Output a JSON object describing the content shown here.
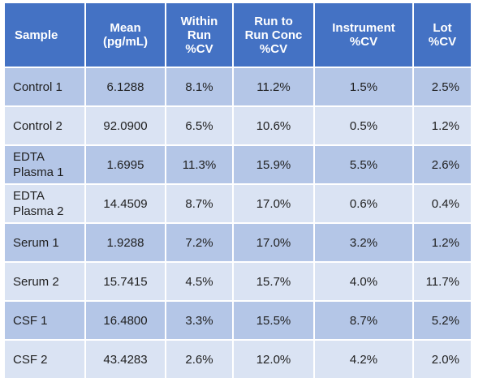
{
  "table": {
    "headers": [
      [
        "Sample"
      ],
      [
        "Mean",
        "(pg/mL)"
      ],
      [
        "Within",
        "Run",
        "%CV"
      ],
      [
        "Run to",
        "Run Conc",
        "%CV"
      ],
      [
        "Instrument",
        "%CV"
      ],
      [
        "Lot",
        "%CV"
      ]
    ],
    "rows": [
      {
        "sample": [
          "Control 1"
        ],
        "mean": "6.1288",
        "within_run": "8.1%",
        "run_to_run": "11.2%",
        "instrument": "1.5%",
        "lot": "2.5%"
      },
      {
        "sample": [
          "Control 2"
        ],
        "mean": "92.0900",
        "within_run": "6.5%",
        "run_to_run": "10.6%",
        "instrument": "0.5%",
        "lot": "1.2%"
      },
      {
        "sample": [
          "EDTA",
          "Plasma 1"
        ],
        "mean": "1.6995",
        "within_run": "11.3%",
        "run_to_run": "15.9%",
        "instrument": "5.5%",
        "lot": "2.6%"
      },
      {
        "sample": [
          "EDTA",
          "Plasma 2"
        ],
        "mean": "14.4509",
        "within_run": "8.7%",
        "run_to_run": "17.0%",
        "instrument": "0.6%",
        "lot": "0.4%"
      },
      {
        "sample": [
          "Serum 1"
        ],
        "mean": "1.9288",
        "within_run": "7.2%",
        "run_to_run": "17.0%",
        "instrument": "3.2%",
        "lot": "1.2%"
      },
      {
        "sample": [
          "Serum 2"
        ],
        "mean": "15.7415",
        "within_run": "4.5%",
        "run_to_run": "15.7%",
        "instrument": "4.0%",
        "lot": "11.7%"
      },
      {
        "sample": [
          "CSF 1"
        ],
        "mean": "16.4800",
        "within_run": "3.3%",
        "run_to_run": "15.5%",
        "instrument": "8.7%",
        "lot": "5.2%"
      },
      {
        "sample": [
          "CSF 2"
        ],
        "mean": "43.4283",
        "within_run": "2.6%",
        "run_to_run": "12.0%",
        "instrument": "4.2%",
        "lot": "2.0%"
      }
    ]
  },
  "colors": {
    "header_bg": "#4472c4",
    "header_text": "#ffffff",
    "row_dark": "#b4c6e7",
    "row_light": "#dae3f3"
  }
}
